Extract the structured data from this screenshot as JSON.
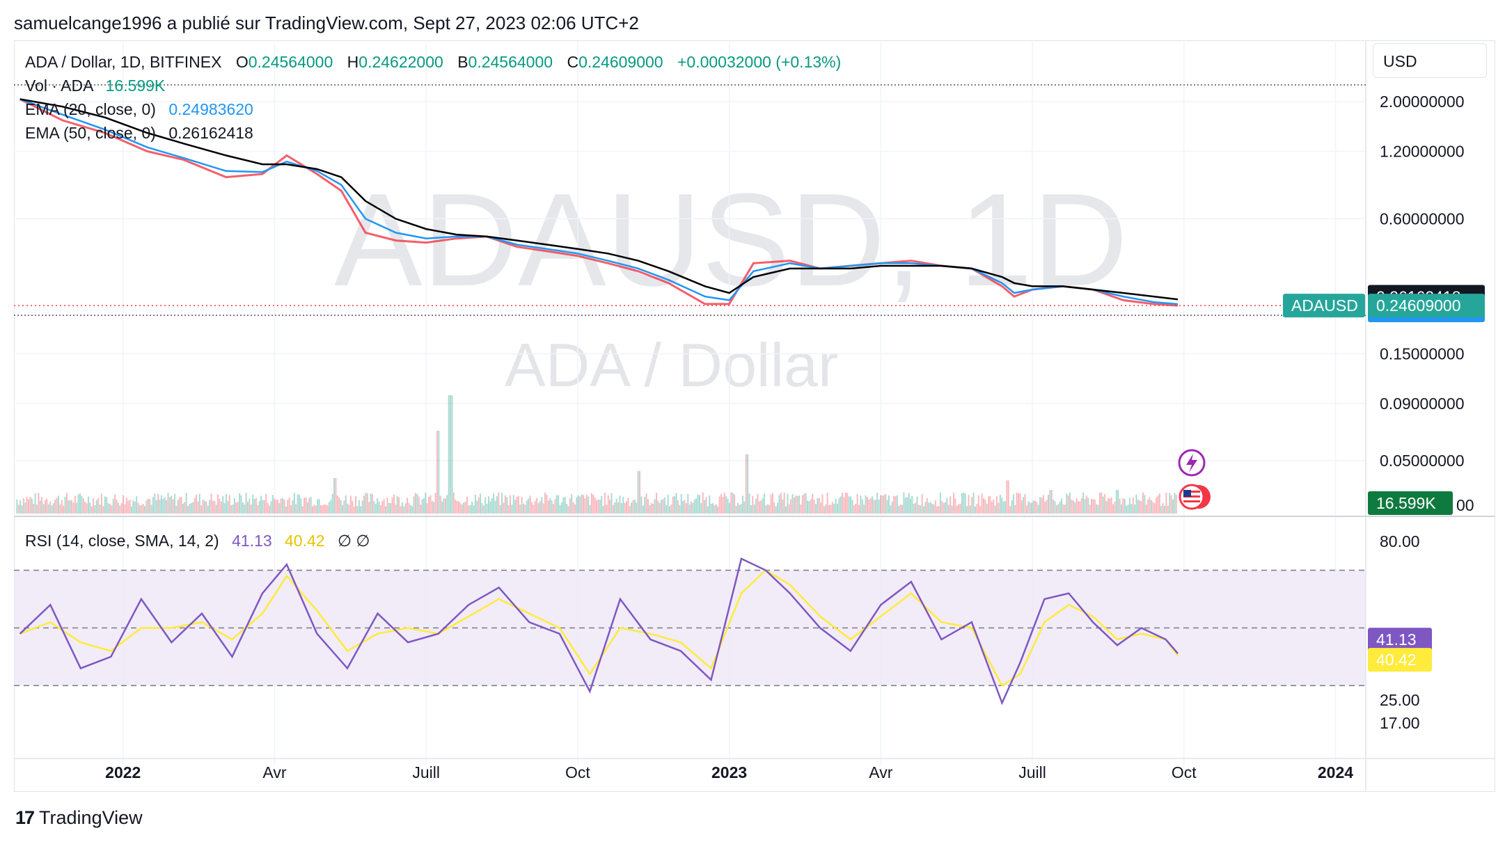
{
  "attribution": "samuelcange1996 a publié sur TradingView.com, Sept 27, 2023 02:06 UTC+2",
  "brand": "TradingView",
  "currency_button": "USD",
  "legend": {
    "symbol": "ADA / Dollar, 1D, BITFINEX",
    "open_label": "O",
    "open": "0.24564000",
    "high_label": "H",
    "high": "0.24622000",
    "low_label": "B",
    "low": "0.24564000",
    "close_label": "C",
    "close": "0.24609000",
    "change": "+0.00032000 (+0.13%)",
    "vol_label": "Vol · ADA",
    "vol_value": "16.599K",
    "ema20_label": "EMA (20, close, 0)",
    "ema20_value": "0.24983620",
    "ema50_label": "EMA (50, close, 0)",
    "ema50_value": "0.26162418",
    "rsi_label": "RSI (14, close, SMA, 14, 2)",
    "rsi_value": "41.13",
    "rsi_sma_value": "40.42",
    "rsi_extra": "∅ ∅"
  },
  "watermark": {
    "main": "ADAUSD, 1D",
    "sub": "ADA / Dollar"
  },
  "colors": {
    "up": "#089981",
    "down": "#f23645",
    "ema20": "#2196f3",
    "ema50": "#000000",
    "rsi": "#7e57c2",
    "rsi_sma": "#ffeb3b",
    "rsi_band": "#ede7f6"
  },
  "chart_data": {
    "type": "line",
    "scale": "log",
    "price_axis_ticks": [
      "2.00000000",
      "1.20000000",
      "0.60000000",
      "0.15000000",
      "0.09000000",
      "0.05000000"
    ],
    "price_axis_partial": "00",
    "price_tags": {
      "ema50": "0.26162418",
      "ema20": "0.24983620",
      "symbol": "ADAUSD",
      "last": "0.24609000",
      "volume": "16.599K"
    },
    "rsi_axis_ticks": [
      "80.00",
      "25.00",
      "17.00"
    ],
    "rsi_tags": {
      "rsi": "41.13",
      "sma": "40.42"
    },
    "rsi_levels": [
      70,
      50,
      30
    ],
    "x_ticks": [
      {
        "label": "2022",
        "bold": true,
        "t": 2022.0
      },
      {
        "label": "Avr",
        "bold": false,
        "t": 2022.25
      },
      {
        "label": "Juill",
        "bold": false,
        "t": 2022.5
      },
      {
        "label": "Oct",
        "bold": false,
        "t": 2022.75
      },
      {
        "label": "2023",
        "bold": true,
        "t": 2023.0
      },
      {
        "label": "Avr",
        "bold": false,
        "t": 2023.25
      },
      {
        "label": "Juill",
        "bold": false,
        "t": 2023.5
      },
      {
        "label": "Oct",
        "bold": false,
        "t": 2023.75
      },
      {
        "label": "2024",
        "bold": true,
        "t": 2024.0
      }
    ],
    "x_range": [
      2021.82,
      2024.05
    ],
    "price_series": {
      "t": [
        2021.83,
        2021.9,
        2021.97,
        2022.04,
        2022.1,
        2022.17,
        2022.23,
        2022.27,
        2022.32,
        2022.36,
        2022.4,
        2022.45,
        2022.5,
        2022.55,
        2022.6,
        2022.65,
        2022.7,
        2022.75,
        2022.8,
        2022.85,
        2022.9,
        2022.96,
        2023.0,
        2023.04,
        2023.1,
        2023.15,
        2023.2,
        2023.25,
        2023.3,
        2023.35,
        2023.4,
        2023.45,
        2023.47,
        2023.5,
        2023.55,
        2023.6,
        2023.65,
        2023.7,
        2023.74
      ],
      "close": [
        2.05,
        1.65,
        1.45,
        1.2,
        1.1,
        0.92,
        0.95,
        1.15,
        0.95,
        0.8,
        0.52,
        0.48,
        0.47,
        0.49,
        0.5,
        0.45,
        0.43,
        0.41,
        0.38,
        0.35,
        0.31,
        0.25,
        0.25,
        0.38,
        0.39,
        0.36,
        0.37,
        0.38,
        0.39,
        0.37,
        0.36,
        0.3,
        0.27,
        0.29,
        0.3,
        0.29,
        0.26,
        0.25,
        0.246
      ]
    },
    "ema50_series": [
      2.05,
      1.9,
      1.7,
      1.45,
      1.3,
      1.15,
      1.05,
      1.05,
      1.0,
      0.92,
      0.72,
      0.6,
      0.54,
      0.51,
      0.5,
      0.48,
      0.46,
      0.44,
      0.42,
      0.39,
      0.35,
      0.3,
      0.28,
      0.33,
      0.36,
      0.36,
      0.36,
      0.37,
      0.37,
      0.37,
      0.36,
      0.33,
      0.31,
      0.3,
      0.3,
      0.29,
      0.28,
      0.27,
      0.262
    ],
    "ema20_series": [
      2.05,
      1.75,
      1.5,
      1.25,
      1.12,
      0.98,
      0.97,
      1.08,
      0.98,
      0.85,
      0.6,
      0.52,
      0.49,
      0.5,
      0.5,
      0.46,
      0.44,
      0.42,
      0.39,
      0.36,
      0.32,
      0.27,
      0.26,
      0.35,
      0.38,
      0.36,
      0.37,
      0.38,
      0.38,
      0.37,
      0.36,
      0.31,
      0.28,
      0.29,
      0.3,
      0.29,
      0.27,
      0.255,
      0.2498
    ],
    "volume_spikes": [
      {
        "t": 2022.35,
        "v": 0.15
      },
      {
        "t": 2022.52,
        "v": 0.35
      },
      {
        "t": 2022.54,
        "v": 0.5
      },
      {
        "t": 2022.85,
        "v": 0.18
      },
      {
        "t": 2023.03,
        "v": 0.25
      },
      {
        "t": 2023.46,
        "v": 0.14
      },
      {
        "t": 2023.53,
        "v": 0.1
      },
      {
        "t": 2023.64,
        "v": 0.1
      }
    ],
    "rsi_series": {
      "t": [
        2021.83,
        2021.88,
        2021.93,
        2021.98,
        2022.03,
        2022.08,
        2022.13,
        2022.18,
        2022.23,
        2022.27,
        2022.32,
        2022.37,
        2022.42,
        2022.47,
        2022.52,
        2022.57,
        2022.62,
        2022.67,
        2022.72,
        2022.77,
        2022.82,
        2022.87,
        2022.92,
        2022.97,
        2023.02,
        2023.06,
        2023.1,
        2023.15,
        2023.2,
        2023.25,
        2023.3,
        2023.35,
        2023.4,
        2023.45,
        2023.48,
        2023.52,
        2023.56,
        2023.6,
        2023.64,
        2023.68,
        2023.72,
        2023.74
      ],
      "rsi": [
        48,
        58,
        36,
        40,
        60,
        45,
        55,
        40,
        62,
        72,
        48,
        36,
        55,
        45,
        48,
        58,
        64,
        52,
        48,
        28,
        60,
        46,
        42,
        32,
        74,
        70,
        62,
        50,
        42,
        58,
        66,
        46,
        52,
        24,
        38,
        60,
        62,
        52,
        44,
        50,
        46,
        41.13
      ],
      "sma": [
        48,
        52,
        45,
        42,
        50,
        50,
        52,
        46,
        55,
        68,
        56,
        42,
        48,
        50,
        48,
        54,
        60,
        55,
        50,
        34,
        50,
        48,
        45,
        36,
        62,
        70,
        65,
        54,
        46,
        54,
        62,
        52,
        50,
        30,
        34,
        52,
        58,
        54,
        46,
        48,
        46,
        40.42
      ]
    }
  }
}
